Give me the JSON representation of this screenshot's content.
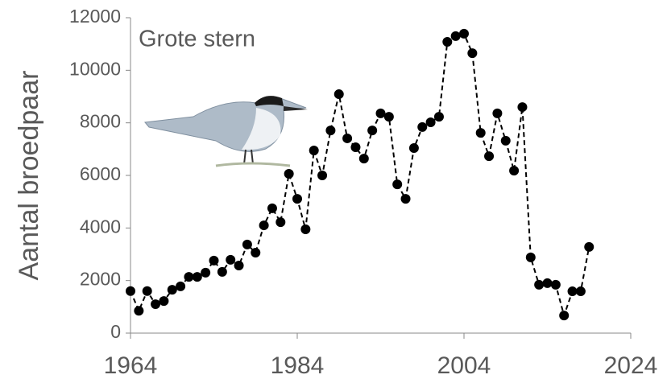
{
  "chart_data": {
    "type": "line",
    "annotation": "Grote stern",
    "y_label": "Aantal broedpaar",
    "x": [
      1964,
      1965,
      1966,
      1967,
      1968,
      1969,
      1970,
      1971,
      1972,
      1973,
      1974,
      1975,
      1976,
      1977,
      1978,
      1979,
      1980,
      1981,
      1982,
      1983,
      1984,
      1985,
      1986,
      1987,
      1988,
      1989,
      1990,
      1991,
      1992,
      1993,
      1994,
      1995,
      1996,
      1997,
      1998,
      1999,
      2000,
      2001,
      2002,
      2003,
      2004,
      2005,
      2006,
      2007,
      2008,
      2009,
      2010,
      2011,
      2012,
      2013,
      2014,
      2015,
      2016,
      2017,
      2018,
      2019
    ],
    "series": [
      {
        "color": "#000000",
        "values": [
          1600,
          850,
          1600,
          1100,
          1220,
          1650,
          1780,
          2140,
          2140,
          2300,
          2760,
          2330,
          2790,
          2570,
          3370,
          3060,
          4100,
          4750,
          4220,
          6060,
          5110,
          3950,
          6950,
          6000,
          7710,
          9090,
          7410,
          7070,
          6640,
          7710,
          8360,
          8230,
          5660,
          5110,
          7040,
          7840,
          8020,
          8230,
          11080,
          11300,
          11390,
          10650,
          7620,
          6730,
          8360,
          7320,
          6180,
          8600,
          2880,
          1840,
          1900,
          1840,
          670,
          1590,
          1590,
          3280
        ]
      }
    ],
    "xlim": [
      1964,
      2024
    ],
    "xticks": [
      1964,
      1984,
      2004,
      2024
    ],
    "ylim": [
      0,
      12000
    ],
    "yticks": [
      0,
      2000,
      4000,
      6000,
      8000,
      10000,
      12000
    ]
  }
}
